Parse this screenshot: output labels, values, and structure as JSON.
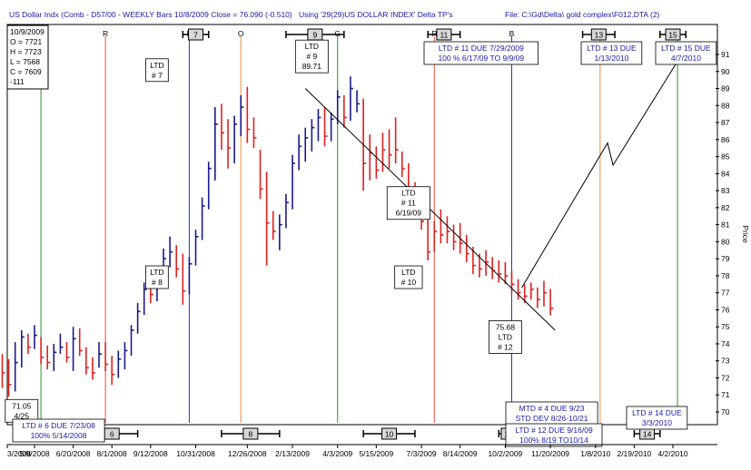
{
  "header": {
    "left": "US Dollar Indx (Comb - D57/00  - WEEKLY Bars  10/8/2009 Close = 76.090 (-0.510)",
    "middle": "Using '29(29)US DOLLAR INDEX' Delta TP's",
    "right": "File:  C:\\Gd\\Delta\\ gold complex\\F012.DTA  (2)"
  },
  "ohlc_box": [
    "10/9/2009",
    "O = 7721",
    "H = 7723",
    "L = 7568",
    "C = 7609",
    "  -111"
  ],
  "chart_data": {
    "type": "ohlc",
    "y_axis_title": "Price",
    "ylim": [
      69,
      92
    ],
    "y_ticks": [
      70,
      71,
      72,
      73,
      74,
      75,
      76,
      77,
      78,
      79,
      80,
      81,
      82,
      83,
      84,
      85,
      86,
      87,
      88,
      89,
      90,
      91
    ],
    "x_tick_labels": [
      "3/2008",
      "5/9/2008",
      "6/20/2008",
      "8/1/2008",
      "9/12/2008",
      "10/31/2008",
      "12/26/2008",
      "2/13/2009",
      "4/3/2009",
      "5/15/2009",
      "7/3/2009",
      "8/14/2009",
      "10/2/2009",
      "11/20/2009",
      "1/8/2010",
      "2/19/2010",
      "4/2/2010"
    ],
    "bars": [
      {
        "h": 74.9,
        "l": 72.6,
        "c": 73.6,
        "color": "red"
      },
      {
        "h": 74.8,
        "l": 72.5,
        "c": 73.4,
        "color": "red"
      },
      {
        "h": 73.9,
        "l": 71.7,
        "c": 72.5,
        "color": "red"
      },
      {
        "h": 73.4,
        "l": 71.4,
        "c": 72.3,
        "color": "red"
      },
      {
        "h": 73.1,
        "l": 70.9,
        "c": 71.6,
        "color": "red"
      },
      {
        "h": 74.1,
        "l": 71.2,
        "c": 72.9,
        "color": "navy"
      },
      {
        "h": 74.8,
        "l": 72.6,
        "c": 74.4,
        "color": "navy"
      },
      {
        "h": 74.6,
        "l": 73.4,
        "c": 73.8,
        "color": "red"
      },
      {
        "h": 75.1,
        "l": 73.7,
        "c": 74.5,
        "color": "navy"
      },
      {
        "h": 74.4,
        "l": 72.8,
        "c": 73.2,
        "color": "red"
      },
      {
        "h": 73.9,
        "l": 72.5,
        "c": 72.9,
        "color": "red"
      },
      {
        "h": 74.0,
        "l": 72.4,
        "c": 73.5,
        "color": "navy"
      },
      {
        "h": 74.6,
        "l": 73.4,
        "c": 73.8,
        "color": "navy"
      },
      {
        "h": 74.1,
        "l": 72.9,
        "c": 73.2,
        "color": "red"
      },
      {
        "h": 75.0,
        "l": 72.4,
        "c": 74.3,
        "color": "navy"
      },
      {
        "h": 74.9,
        "l": 73.3,
        "c": 73.6,
        "color": "red"
      },
      {
        "h": 73.8,
        "l": 72.2,
        "c": 72.6,
        "color": "red"
      },
      {
        "h": 73.2,
        "l": 71.9,
        "c": 72.3,
        "color": "red"
      },
      {
        "h": 74.1,
        "l": 72.6,
        "c": 73.4,
        "color": "navy"
      },
      {
        "h": 74.1,
        "l": 72.4,
        "c": 72.8,
        "color": "red"
      },
      {
        "h": 73.3,
        "l": 71.6,
        "c": 72.2,
        "color": "red"
      },
      {
        "h": 73.6,
        "l": 72.0,
        "c": 73.1,
        "color": "navy"
      },
      {
        "h": 74.1,
        "l": 72.5,
        "c": 73.6,
        "color": "navy"
      },
      {
        "h": 75.1,
        "l": 73.3,
        "c": 74.8,
        "color": "navy"
      },
      {
        "h": 76.4,
        "l": 74.6,
        "c": 75.9,
        "color": "navy"
      },
      {
        "h": 77.6,
        "l": 75.7,
        "c": 77.2,
        "color": "navy"
      },
      {
        "h": 77.9,
        "l": 76.4,
        "c": 76.9,
        "color": "red"
      },
      {
        "h": 78.3,
        "l": 76.5,
        "c": 77.7,
        "color": "navy"
      },
      {
        "h": 79.6,
        "l": 77.6,
        "c": 79.0,
        "color": "navy"
      },
      {
        "h": 80.3,
        "l": 78.5,
        "c": 79.4,
        "color": "navy"
      },
      {
        "h": 79.8,
        "l": 77.9,
        "c": 78.4,
        "color": "red"
      },
      {
        "h": 79.3,
        "l": 76.3,
        "c": 77.1,
        "color": "red"
      },
      {
        "h": 79.1,
        "l": 76.9,
        "c": 78.7,
        "color": "navy"
      },
      {
        "h": 80.7,
        "l": 78.6,
        "c": 80.3,
        "color": "navy"
      },
      {
        "h": 82.6,
        "l": 80.1,
        "c": 82.1,
        "color": "navy"
      },
      {
        "h": 84.7,
        "l": 81.9,
        "c": 84.3,
        "color": "navy"
      },
      {
        "h": 87.9,
        "l": 83.6,
        "c": 86.9,
        "color": "navy"
      },
      {
        "h": 88.1,
        "l": 85.4,
        "c": 86.4,
        "color": "red"
      },
      {
        "h": 87.2,
        "l": 84.3,
        "c": 85.5,
        "color": "red"
      },
      {
        "h": 87.4,
        "l": 84.6,
        "c": 86.9,
        "color": "navy"
      },
      {
        "h": 88.6,
        "l": 86.2,
        "c": 87.9,
        "color": "navy"
      },
      {
        "h": 89.1,
        "l": 85.8,
        "c": 86.6,
        "color": "red"
      },
      {
        "h": 87.3,
        "l": 85.5,
        "c": 86.1,
        "color": "red"
      },
      {
        "h": 85.4,
        "l": 82.5,
        "c": 83.1,
        "color": "red"
      },
      {
        "h": 84.1,
        "l": 78.6,
        "c": 81.1,
        "color": "red"
      },
      {
        "h": 81.8,
        "l": 80.1,
        "c": 80.6,
        "color": "red"
      },
      {
        "h": 81.6,
        "l": 79.5,
        "c": 81.0,
        "color": "navy"
      },
      {
        "h": 82.8,
        "l": 80.8,
        "c": 82.3,
        "color": "navy"
      },
      {
        "h": 85.1,
        "l": 81.9,
        "c": 84.6,
        "color": "navy"
      },
      {
        "h": 86.3,
        "l": 84.2,
        "c": 85.6,
        "color": "navy"
      },
      {
        "h": 86.7,
        "l": 84.7,
        "c": 86.1,
        "color": "navy"
      },
      {
        "h": 87.2,
        "l": 85.3,
        "c": 86.7,
        "color": "navy"
      },
      {
        "h": 87.8,
        "l": 85.9,
        "c": 87.3,
        "color": "navy"
      },
      {
        "h": 87.9,
        "l": 85.6,
        "c": 86.2,
        "color": "red"
      },
      {
        "h": 87.6,
        "l": 85.9,
        "c": 87.2,
        "color": "navy"
      },
      {
        "h": 88.9,
        "l": 86.9,
        "c": 88.5,
        "color": "navy"
      },
      {
        "h": 88.6,
        "l": 86.7,
        "c": 87.3,
        "color": "red"
      },
      {
        "h": 89.71,
        "l": 87.1,
        "c": 89.0,
        "color": "navy"
      },
      {
        "h": 88.9,
        "l": 87.6,
        "c": 88.1,
        "color": "navy"
      },
      {
        "h": 88.4,
        "l": 83.0,
        "c": 84.6,
        "color": "red"
      },
      {
        "h": 86.3,
        "l": 83.6,
        "c": 85.2,
        "color": "red"
      },
      {
        "h": 85.6,
        "l": 83.7,
        "c": 84.2,
        "color": "red"
      },
      {
        "h": 86.4,
        "l": 84.1,
        "c": 85.4,
        "color": "red"
      },
      {
        "h": 86.6,
        "l": 84.3,
        "c": 85.1,
        "color": "red"
      },
      {
        "h": 87.3,
        "l": 84.6,
        "c": 85.4,
        "color": "red"
      },
      {
        "h": 85.3,
        "l": 83.8,
        "c": 84.3,
        "color": "red"
      },
      {
        "h": 84.6,
        "l": 82.6,
        "c": 83.1,
        "color": "red"
      },
      {
        "h": 83.5,
        "l": 81.8,
        "c": 82.2,
        "color": "red"
      },
      {
        "h": 82.4,
        "l": 80.7,
        "c": 81.2,
        "color": "red"
      },
      {
        "h": 81.5,
        "l": 78.9,
        "c": 79.4,
        "color": "red"
      },
      {
        "h": 81.2,
        "l": 79.4,
        "c": 80.6,
        "color": "red"
      },
      {
        "h": 81.9,
        "l": 79.9,
        "c": 80.4,
        "color": "red"
      },
      {
        "h": 81.5,
        "l": 79.9,
        "c": 80.6,
        "color": "red"
      },
      {
        "h": 81.0,
        "l": 79.5,
        "c": 80.0,
        "color": "red"
      },
      {
        "h": 81.1,
        "l": 79.3,
        "c": 79.9,
        "color": "red"
      },
      {
        "h": 80.4,
        "l": 78.8,
        "c": 79.3,
        "color": "red"
      },
      {
        "h": 79.7,
        "l": 78.1,
        "c": 78.6,
        "color": "red"
      },
      {
        "h": 79.3,
        "l": 77.9,
        "c": 78.4,
        "color": "red"
      },
      {
        "h": 79.5,
        "l": 78.0,
        "c": 78.8,
        "color": "red"
      },
      {
        "h": 79.1,
        "l": 77.8,
        "c": 78.3,
        "color": "red"
      },
      {
        "h": 78.9,
        "l": 77.6,
        "c": 78.1,
        "color": "red"
      },
      {
        "h": 78.8,
        "l": 77.5,
        "c": 78.0,
        "color": "red"
      },
      {
        "h": 78.3,
        "l": 77.0,
        "c": 77.5,
        "color": "red"
      },
      {
        "h": 77.8,
        "l": 76.6,
        "c": 77.0,
        "color": "red"
      },
      {
        "h": 77.5,
        "l": 76.4,
        "c": 76.8,
        "color": "red"
      },
      {
        "h": 77.6,
        "l": 76.6,
        "c": 77.2,
        "color": "red"
      },
      {
        "h": 77.3,
        "l": 76.1,
        "c": 76.6,
        "color": "red"
      },
      {
        "h": 77.7,
        "l": 76.2,
        "c": 77.0,
        "color": "red"
      },
      {
        "h": 77.23,
        "l": 75.68,
        "c": 76.09,
        "color": "red"
      }
    ],
    "trend_lines": [
      {
        "points": [
          [
            "2/27/2009",
            89.0
          ],
          [
            "11/25/2009",
            74.8
          ]
        ],
        "color": "#000000",
        "label": "downtrend line"
      },
      {
        "points": [
          [
            "10/20/2009",
            77.3
          ],
          [
            "1/21/2010",
            85.8
          ],
          [
            "1/27/2010",
            84.5
          ],
          [
            "4/7/2010",
            90.6
          ]
        ],
        "color": "#000000",
        "label": "projection"
      }
    ],
    "ltd_labels": [
      {
        "lines": [
          "71.05",
          "4/25"
        ],
        "date": "4/25/2008",
        "price": 71.05,
        "place": "below"
      },
      {
        "lines": [
          "LTD",
          "# 7"
        ],
        "date": "9/19/2008",
        "price": 89.2,
        "place": "above"
      },
      {
        "lines": [
          "LTD",
          "# 8"
        ],
        "date": "9/19/2008",
        "price": 78.9,
        "place": "below"
      },
      {
        "lines": [
          "LTD",
          "# 9",
          "89.71"
        ],
        "date": "3/6/2009",
        "price": 89.71,
        "place": "above"
      },
      {
        "lines": [
          "LTD",
          "# 10"
        ],
        "date": "6/19/2009",
        "price": 78.9,
        "place": "below"
      },
      {
        "lines": [
          "LTD",
          "# 11",
          "6/19/09"
        ],
        "date": "6/19/2009",
        "price": 81.1,
        "place": "above"
      },
      {
        "lines": [
          "75.68",
          "LTD",
          "# 12"
        ],
        "date": "10/2/2009",
        "price": 75.68,
        "place": "below"
      }
    ],
    "cycle_markers": [
      {
        "label": "R",
        "date": "7/25/2008",
        "color": "#e84c3c",
        "label_color": "#e84c3c"
      },
      {
        "label": "B",
        "date": "10/24/2008",
        "color": "#2d2de0",
        "label_color": "#2d2de0"
      },
      {
        "label": "O",
        "date": "12/19/2008",
        "color": "#f08a3a",
        "label_color": "#f08a3a"
      },
      {
        "label": "G",
        "date": "4/3/2009",
        "color": "#2a8f2a",
        "label_color": "#2a8f2a"
      },
      {
        "label": "R",
        "date": "7/17/2009",
        "color": "#e84c3c",
        "label_color": "#e84c3c"
      },
      {
        "label": "B",
        "date": "10/9/2009",
        "color": "#2d2de0",
        "label_color": "#2d2de0"
      },
      {
        "label": "",
        "date": "1/13/2010",
        "color": "#f08a3a",
        "label_color": "#f08a3a"
      },
      {
        "label": "",
        "date": "4/7/2010",
        "color": "#2a8f2a",
        "label_color": "#2a8f2a"
      }
    ],
    "green_line_2008": {
      "date": "5/16/2008",
      "color": "#2a8f2a"
    },
    "top_range_markers": [
      {
        "num": "7",
        "start": "10/17/2008",
        "end": "11/14/2008"
      },
      {
        "num": "9",
        "start": "2/6/2009",
        "end": "4/10/2009"
      },
      {
        "num": "11",
        "start": "7/10/2009",
        "end": "8/14/2009"
      },
      {
        "num": "13",
        "start": "12/25/2009",
        "end": "1/29/2010"
      },
      {
        "num": "15",
        "start": "3/19/2010",
        "end": "4/16/2010"
      }
    ],
    "bottom_range_markers": [
      {
        "num": "6",
        "start": "7/4/2008",
        "end": "8/29/2008"
      },
      {
        "num": "8",
        "start": "11/28/2008",
        "end": "1/30/2009"
      },
      {
        "num": "10",
        "start": "5/1/2009",
        "end": "6/26/2009"
      },
      {
        "num": "12",
        "start": "9/25/2009",
        "end": "10/16/2009"
      },
      {
        "num": "14",
        "start": "2/19/2010",
        "end": "3/19/2010"
      }
    ],
    "info_boxes": [
      {
        "lines": [
          "LTD # 6 DUE 7/23/08",
          "100% 5/14/2008"
        ],
        "pos": "bottom-left"
      },
      {
        "lines": [
          "LTD # 11 DUE 7/29/2009",
          "100 %  6/17/09 TO 9/9/09"
        ],
        "pos": "top-mid"
      },
      {
        "lines": [
          "LTD # 13 DUE",
          "1/13/2010"
        ],
        "pos": "top-right-1"
      },
      {
        "lines": [
          "LTD # 15 DUE",
          "4/7/2010"
        ],
        "pos": "top-right-2"
      },
      {
        "lines": [
          "MTD # 4 DUE 9/23",
          "STD DEV  8/26-10/21"
        ],
        "pos": "bottom-mid-1"
      },
      {
        "lines": [
          "LTD # 12 DUE 9/16/09",
          "100%  8/19 TO10/14"
        ],
        "pos": "bottom-mid-2"
      },
      {
        "lines": [
          "LTD # 14 DUE",
          "3/3/2010"
        ],
        "pos": "bottom-right"
      }
    ]
  }
}
